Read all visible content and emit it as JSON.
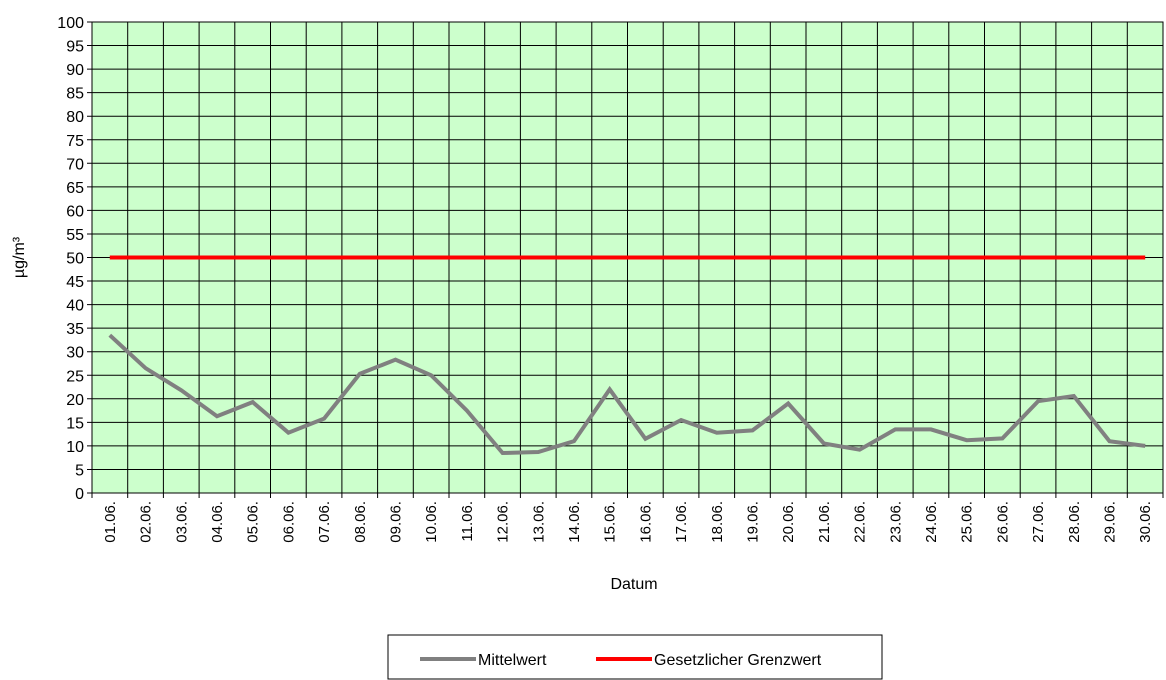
{
  "chart_data": {
    "type": "line",
    "xlabel": "Datum",
    "ylabel": "µg/m³",
    "ylim": [
      0,
      100
    ],
    "ytick_step": 5,
    "grid": true,
    "legend_position": "bottom",
    "plot_background": "#ccffcc",
    "categories": [
      "01.06.",
      "02.06.",
      "03.06.",
      "04.06.",
      "05.06.",
      "06.06.",
      "07.06.",
      "08.06.",
      "09.06.",
      "10.06.",
      "11.06.",
      "12.06.",
      "13.06.",
      "14.06.",
      "15.06.",
      "16.06.",
      "17.06.",
      "18.06.",
      "19.06.",
      "20.06.",
      "21.06.",
      "22.06.",
      "23.06.",
      "24.06.",
      "25.06.",
      "26.06.",
      "27.06.",
      "28.06.",
      "29.06.",
      "30.06."
    ],
    "series": [
      {
        "name": "Mittelwert",
        "color": "#808080",
        "values": [
          33.5,
          26.5,
          21.8,
          16.3,
          19.3,
          12.8,
          15.8,
          25.3,
          28.3,
          25.0,
          17.5,
          8.5,
          8.7,
          11.0,
          22.0,
          11.5,
          15.5,
          12.8,
          13.3,
          19.0,
          10.5,
          9.2,
          13.5,
          13.5,
          11.2,
          11.6,
          19.5,
          20.6,
          11.0,
          10.0
        ]
      },
      {
        "name": "Gesetzlicher Grenzwert",
        "color": "#ff0000",
        "values": [
          50,
          50,
          50,
          50,
          50,
          50,
          50,
          50,
          50,
          50,
          50,
          50,
          50,
          50,
          50,
          50,
          50,
          50,
          50,
          50,
          50,
          50,
          50,
          50,
          50,
          50,
          50,
          50,
          50,
          50
        ]
      }
    ]
  }
}
